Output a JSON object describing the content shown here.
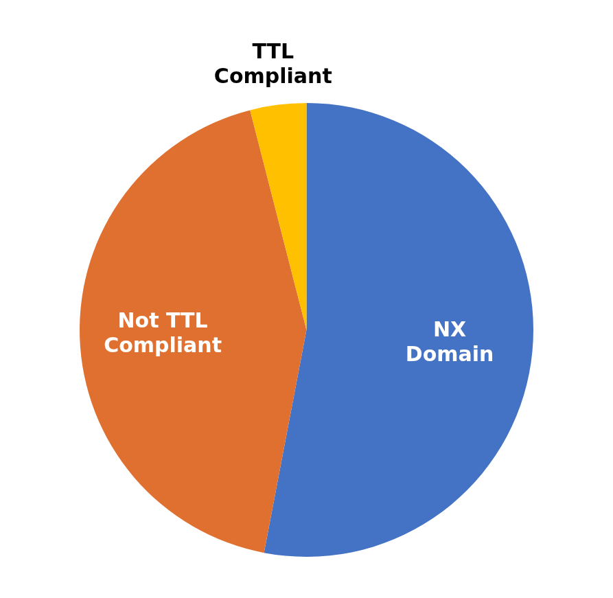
{
  "chart_data": {
    "type": "pie",
    "categories": [
      "NX\nDomain",
      "Not TTL\nCompliant",
      "TTL\nCompliant"
    ],
    "values": [
      53,
      43,
      4
    ],
    "colors": [
      "#4472C4",
      "#E07030",
      "#FFC000"
    ],
    "legend": false
  }
}
